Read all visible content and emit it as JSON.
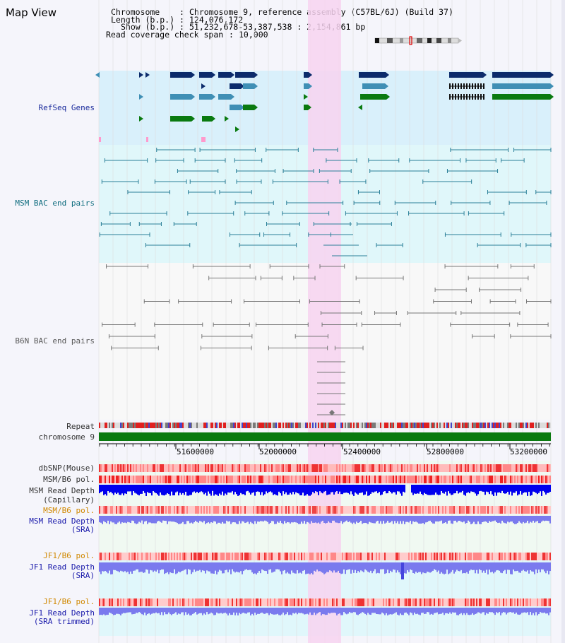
{
  "header": {
    "title": "Map View",
    "chromosome_key": "Chromosome",
    "chromosome_value": "Chromosome 9, reference assembly (C57BL/6J) (Build 37)",
    "length_key": "Length (b.p.)",
    "length_value": "124,076,172",
    "show_key": "Show (b.p.)",
    "show_value": "51,232,678-53,387,538 : 2,154,861 bp",
    "coverage_key": "Read coverage check span",
    "coverage_value": "10,000"
  },
  "tracks": {
    "refseq": "RefSeq Genes",
    "msm_bac": "MSM BAC end pairs",
    "b6n_bac": "B6N BAC end pairs",
    "repeat": "Repeat",
    "chromosome": "chromosome 9",
    "dbsnp": "dbSNP(Mouse)",
    "msm_b6_pol_1": "MSM/B6 pol.",
    "msm_read_depth_cap_1": "MSM Read Depth",
    "msm_read_depth_cap_2": "(Capillary)",
    "msm_b6_pol_2": "MSM/B6 pol.",
    "msm_read_depth_sra_1": "MSM Read Depth",
    "msm_read_depth_sra_2": "(SRA)",
    "jf1_b6_pol_1": "JF1/B6 pol.",
    "jf1_read_depth_sra_1": "JF1 Read Depth",
    "jf1_read_depth_sra_2": "(SRA)",
    "jf1_b6_pol_2": "JF1/B6 pol.",
    "jf1_read_depth_trim_1": "JF1 Read Depth",
    "jf1_read_depth_trim_2": "(SRA trimmed)"
  },
  "axis": {
    "ticks": [
      "51600000",
      "52000000",
      "52400000",
      "52800000",
      "53200000"
    ]
  },
  "colors": {
    "highlight": "#f7d4f0",
    "refseq_dark": "#0b2b6b",
    "refseq_mid": "#3f8fb5",
    "refseq_green": "#0a7a10",
    "msm_line": "#2a7f98",
    "b6n_line": "#777777",
    "read_depth_dark": "#0000ee",
    "read_depth_light": "#7a7aee"
  }
}
